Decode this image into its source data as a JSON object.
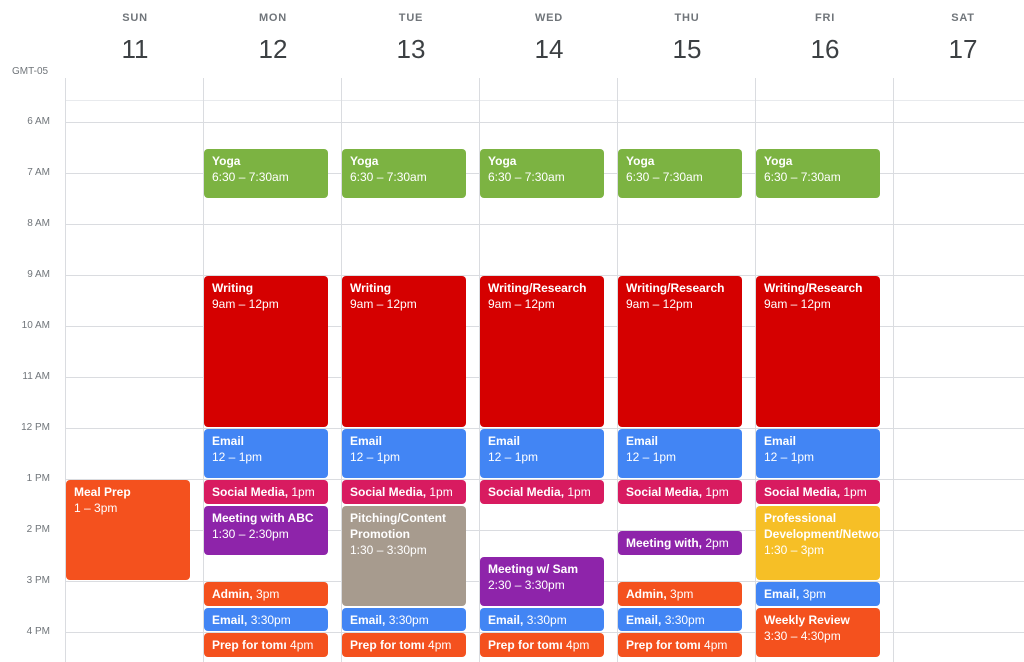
{
  "timezone": "GMT-05",
  "colors": {
    "yoga": "#7cb342",
    "writing": "#d50000",
    "email": "#4285f4",
    "social": "#d81b60",
    "meeting": "#8e24aa",
    "admin": "#f4511e",
    "pitching": "#a79b8e",
    "professional": "#f6bf26",
    "weekly": "#f4511e",
    "mealprep": "#f4511e"
  },
  "days": [
    {
      "dow": "SUN",
      "num": "11"
    },
    {
      "dow": "MON",
      "num": "12"
    },
    {
      "dow": "TUE",
      "num": "13"
    },
    {
      "dow": "WED",
      "num": "14"
    },
    {
      "dow": "THU",
      "num": "15"
    },
    {
      "dow": "FRI",
      "num": "16"
    },
    {
      "dow": "SAT",
      "num": "17"
    }
  ],
  "hours": [
    "6 AM",
    "7 AM",
    "8 AM",
    "9 AM",
    "10 AM",
    "11 AM",
    "12 PM",
    "1 PM",
    "2 PM",
    "3 PM",
    "4 PM"
  ],
  "events": [
    {
      "day": 0,
      "start": 13,
      "end": 15,
      "title": "Meal Prep",
      "time": "1 – 3pm",
      "color": "mealprep"
    },
    {
      "day": 1,
      "start": 6.5,
      "end": 7.5,
      "title": "Yoga",
      "time": "6:30 – 7:30am",
      "color": "yoga"
    },
    {
      "day": 1,
      "start": 9,
      "end": 12,
      "title": "Writing",
      "time": "9am – 12pm",
      "color": "writing"
    },
    {
      "day": 1,
      "start": 12,
      "end": 13,
      "title": "Email",
      "time": "12 – 1pm",
      "color": "email"
    },
    {
      "day": 1,
      "start": 13,
      "end": 13.5,
      "title": "Social Media,",
      "time": "1pm",
      "color": "social",
      "single": true
    },
    {
      "day": 1,
      "start": 13.5,
      "end": 14.5,
      "title": "Meeting with ABC",
      "time": "1:30 – 2:30pm",
      "color": "meeting"
    },
    {
      "day": 1,
      "start": 15,
      "end": 15.5,
      "title": "Admin,",
      "time": "3pm",
      "color": "admin",
      "single": true
    },
    {
      "day": 1,
      "start": 15.5,
      "end": 16,
      "title": "Email,",
      "time": "3:30pm",
      "color": "email",
      "single": true
    },
    {
      "day": 1,
      "start": 16,
      "end": 16.5,
      "title": "Prep for tomı",
      "time": "4pm",
      "color": "admin",
      "single": true
    },
    {
      "day": 2,
      "start": 6.5,
      "end": 7.5,
      "title": "Yoga",
      "time": "6:30 – 7:30am",
      "color": "yoga"
    },
    {
      "day": 2,
      "start": 9,
      "end": 12,
      "title": "Writing",
      "time": "9am – 12pm",
      "color": "writing"
    },
    {
      "day": 2,
      "start": 12,
      "end": 13,
      "title": "Email",
      "time": "12 – 1pm",
      "color": "email"
    },
    {
      "day": 2,
      "start": 13,
      "end": 13.5,
      "title": "Social Media,",
      "time": "1pm",
      "color": "social",
      "single": true
    },
    {
      "day": 2,
      "start": 13.5,
      "end": 15.5,
      "title": "Pitching/Content Promotion",
      "time": "1:30 – 3:30pm",
      "color": "pitching"
    },
    {
      "day": 2,
      "start": 15.5,
      "end": 16,
      "title": "Email,",
      "time": "3:30pm",
      "color": "email",
      "single": true
    },
    {
      "day": 2,
      "start": 16,
      "end": 16.5,
      "title": "Prep for tomı",
      "time": "4pm",
      "color": "admin",
      "single": true
    },
    {
      "day": 3,
      "start": 6.5,
      "end": 7.5,
      "title": "Yoga",
      "time": "6:30 – 7:30am",
      "color": "yoga"
    },
    {
      "day": 3,
      "start": 9,
      "end": 12,
      "title": "Writing/Research",
      "time": "9am – 12pm",
      "color": "writing"
    },
    {
      "day": 3,
      "start": 12,
      "end": 13,
      "title": "Email",
      "time": "12 – 1pm",
      "color": "email"
    },
    {
      "day": 3,
      "start": 13,
      "end": 13.5,
      "title": "Social Media,",
      "time": "1pm",
      "color": "social",
      "single": true
    },
    {
      "day": 3,
      "start": 14.5,
      "end": 15.5,
      "title": "Meeting w/ Sam",
      "time": "2:30 – 3:30pm",
      "color": "meeting"
    },
    {
      "day": 3,
      "start": 15.5,
      "end": 16,
      "title": "Email,",
      "time": "3:30pm",
      "color": "email",
      "single": true
    },
    {
      "day": 3,
      "start": 16,
      "end": 16.5,
      "title": "Prep for tomı",
      "time": "4pm",
      "color": "admin",
      "single": true
    },
    {
      "day": 4,
      "start": 6.5,
      "end": 7.5,
      "title": "Yoga",
      "time": "6:30 – 7:30am",
      "color": "yoga"
    },
    {
      "day": 4,
      "start": 9,
      "end": 12,
      "title": "Writing/Research",
      "time": "9am – 12pm",
      "color": "writing"
    },
    {
      "day": 4,
      "start": 12,
      "end": 13,
      "title": "Email",
      "time": "12 – 1pm",
      "color": "email"
    },
    {
      "day": 4,
      "start": 13,
      "end": 13.5,
      "title": "Social Media,",
      "time": "1pm",
      "color": "social",
      "single": true
    },
    {
      "day": 4,
      "start": 14,
      "end": 14.5,
      "title": "Meeting with,",
      "time": "2pm",
      "color": "meeting",
      "single": true
    },
    {
      "day": 4,
      "start": 15,
      "end": 15.5,
      "title": "Admin,",
      "time": "3pm",
      "color": "admin",
      "single": true
    },
    {
      "day": 4,
      "start": 15.5,
      "end": 16,
      "title": "Email,",
      "time": "3:30pm",
      "color": "email",
      "single": true
    },
    {
      "day": 4,
      "start": 16,
      "end": 16.5,
      "title": "Prep for tomı",
      "time": "4pm",
      "color": "admin",
      "single": true
    },
    {
      "day": 5,
      "start": 6.5,
      "end": 7.5,
      "title": "Yoga",
      "time": "6:30 – 7:30am",
      "color": "yoga"
    },
    {
      "day": 5,
      "start": 9,
      "end": 12,
      "title": "Writing/Research",
      "time": "9am – 12pm",
      "color": "writing"
    },
    {
      "day": 5,
      "start": 12,
      "end": 13,
      "title": "Email",
      "time": "12 – 1pm",
      "color": "email"
    },
    {
      "day": 5,
      "start": 13,
      "end": 13.5,
      "title": "Social Media,",
      "time": "1pm",
      "color": "social",
      "single": true
    },
    {
      "day": 5,
      "start": 13.5,
      "end": 15,
      "title": "Professional Development/Networking",
      "time": "1:30 – 3pm",
      "color": "professional"
    },
    {
      "day": 5,
      "start": 15,
      "end": 15.5,
      "title": "Email,",
      "time": "3pm",
      "color": "email",
      "single": true
    },
    {
      "day": 5,
      "start": 15.5,
      "end": 16.5,
      "title": "Weekly Review",
      "time": "3:30 – 4:30pm",
      "color": "weekly"
    }
  ]
}
